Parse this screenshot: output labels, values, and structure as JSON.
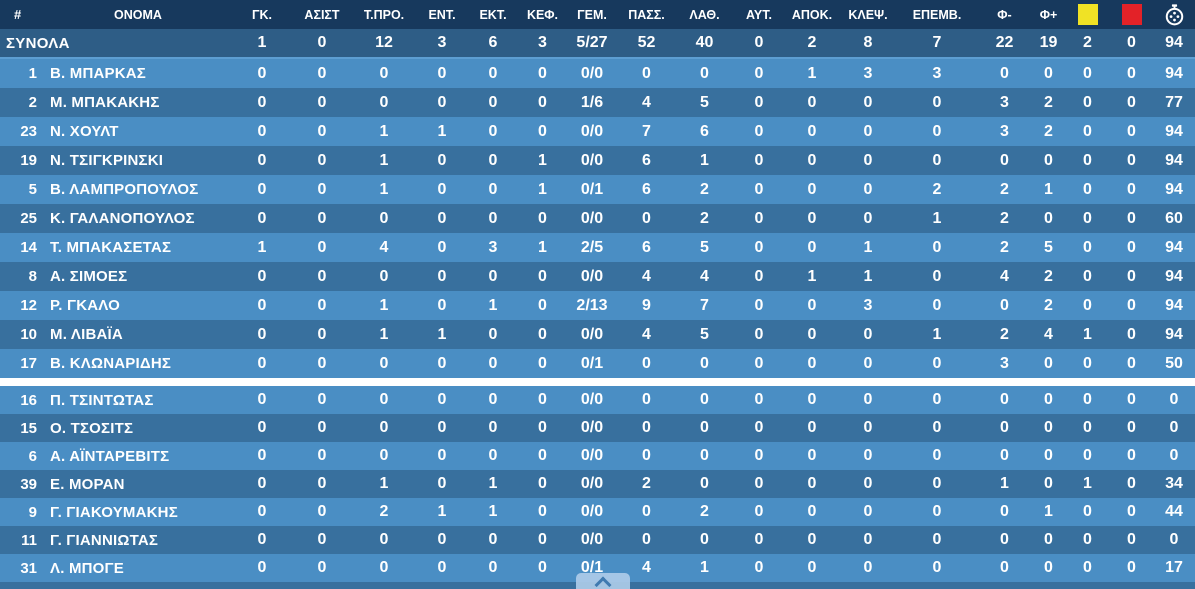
{
  "colors": {
    "header_bg": "#17395d",
    "totals_bg": "#2e5d86",
    "row_light": "#4a8ec4",
    "row_dark": "#38709e",
    "divider_light": "#5d9ed2",
    "yellow_card": "#f0e225",
    "red_card": "#e32228",
    "text": "#ffffff"
  },
  "table": {
    "header": {
      "number_label": "#",
      "name_label": "ΟΝΟΜΑ",
      "stat_labels": [
        "ΓΚ.",
        "ΑΣΙΣΤ",
        "Τ.ΠΡΟ.",
        "ΕΝΤ.",
        "ΕΚΤ.",
        "ΚΕΦ.",
        "ΓΕΜ.",
        "ΠΑΣΣ.",
        "ΛΑΘ.",
        "ΑΥΤ.",
        "ΑΠΟΚ.",
        "ΚΛΕΨ.",
        "ΕΠΕΜΒ.",
        "Φ-",
        "Φ+"
      ],
      "icon_columns": [
        "yellow-card-icon",
        "red-card-icon",
        "stopwatch-icon"
      ]
    },
    "totals": {
      "label": "ΣΥΝΟΛΑ",
      "values": [
        "1",
        "0",
        "12",
        "3",
        "6",
        "3",
        "5/27",
        "52",
        "40",
        "0",
        "2",
        "8",
        "7",
        "22",
        "19",
        "2",
        "0",
        "94"
      ]
    },
    "starters": [
      {
        "number": "1",
        "name": "Β. ΜΠΑΡΚΑΣ",
        "values": [
          "0",
          "0",
          "0",
          "0",
          "0",
          "0",
          "0/0",
          "0",
          "0",
          "0",
          "1",
          "3",
          "3",
          "0",
          "0",
          "0",
          "0",
          "94"
        ]
      },
      {
        "number": "2",
        "name": "Μ. ΜΠΑΚΑΚΗΣ",
        "values": [
          "0",
          "0",
          "0",
          "0",
          "0",
          "0",
          "1/6",
          "4",
          "5",
          "0",
          "0",
          "0",
          "0",
          "3",
          "2",
          "0",
          "0",
          "77"
        ]
      },
      {
        "number": "23",
        "name": "Ν. ΧΟΥΛΤ",
        "values": [
          "0",
          "0",
          "1",
          "1",
          "0",
          "0",
          "0/0",
          "7",
          "6",
          "0",
          "0",
          "0",
          "0",
          "3",
          "2",
          "0",
          "0",
          "94"
        ]
      },
      {
        "number": "19",
        "name": "Ν. ΤΣΙΓΚΡΙΝΣΚΙ",
        "values": [
          "0",
          "0",
          "1",
          "0",
          "0",
          "1",
          "0/0",
          "6",
          "1",
          "0",
          "0",
          "0",
          "0",
          "0",
          "0",
          "0",
          "0",
          "94"
        ]
      },
      {
        "number": "5",
        "name": "Β. ΛΑΜΠΡΟΠΟΥΛΟΣ",
        "values": [
          "0",
          "0",
          "1",
          "0",
          "0",
          "1",
          "0/1",
          "6",
          "2",
          "0",
          "0",
          "0",
          "2",
          "2",
          "1",
          "0",
          "0",
          "94"
        ]
      },
      {
        "number": "25",
        "name": "Κ. ΓΑΛΑΝΟΠΟΥΛΟΣ",
        "values": [
          "0",
          "0",
          "0",
          "0",
          "0",
          "0",
          "0/0",
          "0",
          "2",
          "0",
          "0",
          "0",
          "1",
          "2",
          "0",
          "0",
          "0",
          "60"
        ]
      },
      {
        "number": "14",
        "name": "Τ. ΜΠΑΚΑΣΕΤΑΣ",
        "values": [
          "1",
          "0",
          "4",
          "0",
          "3",
          "1",
          "2/5",
          "6",
          "5",
          "0",
          "0",
          "1",
          "0",
          "2",
          "5",
          "0",
          "0",
          "94"
        ]
      },
      {
        "number": "8",
        "name": "Α. ΣΙΜΟΕΣ",
        "values": [
          "0",
          "0",
          "0",
          "0",
          "0",
          "0",
          "0/0",
          "4",
          "4",
          "0",
          "1",
          "1",
          "0",
          "4",
          "2",
          "0",
          "0",
          "94"
        ]
      },
      {
        "number": "12",
        "name": "Ρ. ΓΚΑΛΟ",
        "values": [
          "0",
          "0",
          "1",
          "0",
          "1",
          "0",
          "2/13",
          "9",
          "7",
          "0",
          "0",
          "3",
          "0",
          "0",
          "2",
          "0",
          "0",
          "94"
        ]
      },
      {
        "number": "10",
        "name": "Μ. ΛΙΒΑΪΑ",
        "values": [
          "0",
          "0",
          "1",
          "1",
          "0",
          "0",
          "0/0",
          "4",
          "5",
          "0",
          "0",
          "0",
          "1",
          "2",
          "4",
          "1",
          "0",
          "94"
        ]
      },
      {
        "number": "17",
        "name": "Β. ΚΛΩΝΑΡΙΔΗΣ",
        "values": [
          "0",
          "0",
          "0",
          "0",
          "0",
          "0",
          "0/1",
          "0",
          "0",
          "0",
          "0",
          "0",
          "0",
          "3",
          "0",
          "0",
          "0",
          "50"
        ]
      }
    ],
    "substitutes": [
      {
        "number": "16",
        "name": "Π. ΤΣΙΝΤΩΤΑΣ",
        "values": [
          "0",
          "0",
          "0",
          "0",
          "0",
          "0",
          "0/0",
          "0",
          "0",
          "0",
          "0",
          "0",
          "0",
          "0",
          "0",
          "0",
          "0",
          "0"
        ]
      },
      {
        "number": "15",
        "name": "Ο. ΤΣΟΣΙΤΣ",
        "values": [
          "0",
          "0",
          "0",
          "0",
          "0",
          "0",
          "0/0",
          "0",
          "0",
          "0",
          "0",
          "0",
          "0",
          "0",
          "0",
          "0",
          "0",
          "0"
        ]
      },
      {
        "number": "6",
        "name": "Α. ΑΪΝΤΑΡΕΒΙΤΣ",
        "values": [
          "0",
          "0",
          "0",
          "0",
          "0",
          "0",
          "0/0",
          "0",
          "0",
          "0",
          "0",
          "0",
          "0",
          "0",
          "0",
          "0",
          "0",
          "0"
        ]
      },
      {
        "number": "39",
        "name": "Ε. ΜΟΡΑΝ",
        "values": [
          "0",
          "0",
          "1",
          "0",
          "1",
          "0",
          "0/0",
          "2",
          "0",
          "0",
          "0",
          "0",
          "0",
          "1",
          "0",
          "1",
          "0",
          "34"
        ]
      },
      {
        "number": "9",
        "name": "Γ. ΓΙΑΚΟΥΜΑΚΗΣ",
        "values": [
          "0",
          "0",
          "2",
          "1",
          "1",
          "0",
          "0/0",
          "0",
          "2",
          "0",
          "0",
          "0",
          "0",
          "0",
          "1",
          "0",
          "0",
          "44"
        ]
      },
      {
        "number": "11",
        "name": "Γ. ΓΙΑΝΝΙΩΤΑΣ",
        "values": [
          "0",
          "0",
          "0",
          "0",
          "0",
          "0",
          "0/0",
          "0",
          "0",
          "0",
          "0",
          "0",
          "0",
          "0",
          "0",
          "0",
          "0",
          "0"
        ]
      },
      {
        "number": "31",
        "name": "Λ. ΜΠΟΓΕ",
        "values": [
          "0",
          "0",
          "0",
          "0",
          "0",
          "0",
          "0/1",
          "4",
          "1",
          "0",
          "0",
          "0",
          "0",
          "0",
          "0",
          "0",
          "0",
          "17"
        ]
      }
    ]
  },
  "scroll_button": {
    "icon": "chevron-up-icon"
  }
}
